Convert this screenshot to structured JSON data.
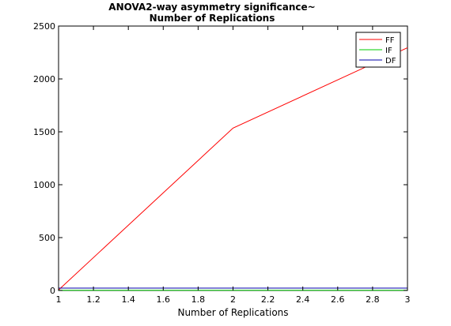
{
  "chart_data": {
    "type": "line",
    "title_line1": "ANOVA2-way asymmetry significance~",
    "title_line2": "Number of Replications",
    "xlabel": "Number of Replications",
    "ylabel": "",
    "xlim": [
      1,
      3
    ],
    "ylim": [
      0,
      2500
    ],
    "xticks": [
      1,
      1.2,
      1.4,
      1.6,
      1.8,
      2,
      2.2,
      2.4,
      2.6,
      2.8,
      3
    ],
    "xtick_labels": [
      "1",
      "1.2",
      "1.4",
      "1.6",
      "1.8",
      "2",
      "2.2",
      "2.4",
      "2.6",
      "2.8",
      "3"
    ],
    "yticks": [
      0,
      500,
      1000,
      1500,
      2000,
      2500
    ],
    "ytick_labels": [
      "0",
      "500",
      "1000",
      "1500",
      "2000",
      "2500"
    ],
    "grid": false,
    "legend_position": "top-right",
    "series": [
      {
        "name": "FF",
        "color": "#ff0000",
        "x": [
          1,
          2,
          3
        ],
        "y": [
          5,
          1535,
          2295
        ]
      },
      {
        "name": "IF",
        "color": "#00cc00",
        "x": [
          1,
          2,
          3
        ],
        "y": [
          2,
          2,
          2
        ]
      },
      {
        "name": "DF",
        "color": "#0000aa",
        "x": [
          1,
          2,
          3
        ],
        "y": [
          22,
          22,
          22
        ]
      }
    ]
  }
}
